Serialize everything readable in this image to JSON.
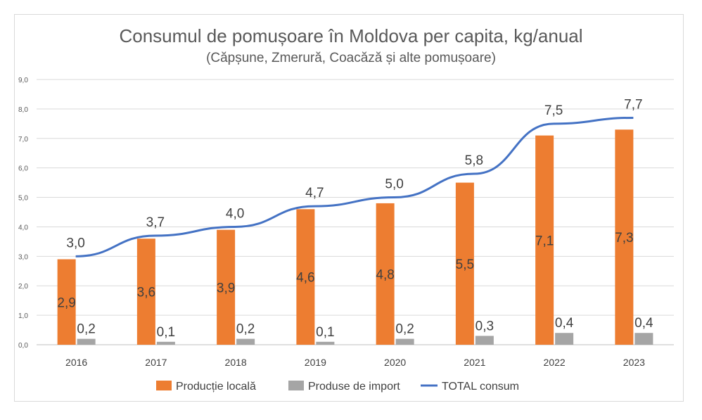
{
  "chart_data": {
    "type": "bar",
    "title": "Consumul de pomușoare în Moldova per capita, kg/anual",
    "subtitle": "(Căpșune, Zmerură, Coacăză și alte pomușoare)",
    "categories": [
      "2016",
      "2017",
      "2018",
      "2019",
      "2020",
      "2021",
      "2022",
      "2023"
    ],
    "ylim": [
      0,
      9
    ],
    "yticks": [
      "0,0",
      "1,0",
      "2,0",
      "3,0",
      "4,0",
      "5,0",
      "6,0",
      "7,0",
      "8,0",
      "9,0"
    ],
    "grid": true,
    "legend_position": "bottom",
    "series": [
      {
        "name": "Producție locală",
        "kind": "bar",
        "color": "#ED7D31",
        "values": [
          2.9,
          3.6,
          3.9,
          4.6,
          4.8,
          5.5,
          7.1,
          7.3
        ],
        "labels": [
          "2,9",
          "3,6",
          "3,9",
          "4,6",
          "4,8",
          "5,5",
          "7,1",
          "7,3"
        ]
      },
      {
        "name": "Produse de import",
        "kind": "bar",
        "color": "#A5A5A5",
        "values": [
          0.2,
          0.1,
          0.2,
          0.1,
          0.2,
          0.3,
          0.4,
          0.4
        ],
        "labels": [
          "0,2",
          "0,1",
          "0,2",
          "0,1",
          "0,2",
          "0,3",
          "0,4",
          "0,4"
        ]
      },
      {
        "name": "TOTAL consum",
        "kind": "line",
        "color": "#4472C4",
        "values": [
          3.0,
          3.7,
          4.0,
          4.7,
          5.0,
          5.8,
          7.5,
          7.7
        ],
        "labels": [
          "3,0",
          "3,7",
          "4,0",
          "4,7",
          "5,0",
          "5,8",
          "7,5",
          "7,7"
        ]
      }
    ]
  }
}
